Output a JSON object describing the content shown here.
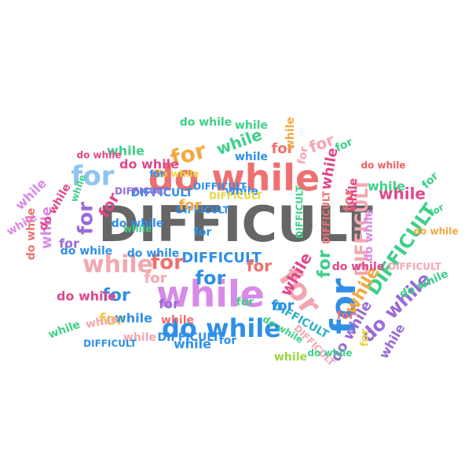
{
  "colors": {
    "gray": "#666666",
    "coral": "#ee7070",
    "blue": "#2f8fe8",
    "violet": "#d98ae8",
    "pink": "#f4a6b0",
    "magenta": "#e0488a",
    "green": "#3ed08a",
    "orange": "#f5a840",
    "yellow": "#e8d440",
    "teal": "#2fb0c8",
    "purple": "#9a6ad8",
    "lime": "#9ad840",
    "lightblue": "#8fc4f0",
    "red": "#f06060"
  },
  "words": [
    {
      "text": "DIFFICULT",
      "color": "gray"
    },
    {
      "text": "do while",
      "color": "coral"
    },
    {
      "text": "while",
      "color": "violet"
    },
    {
      "text": "do while",
      "color": "blue"
    },
    {
      "text": "for",
      "color": "pink"
    },
    {
      "text": "for",
      "color": "blue"
    },
    {
      "text": "while",
      "color": "pink"
    },
    {
      "text": "DIFFICULT",
      "color": "blue"
    },
    {
      "text": "while",
      "color": "magenta"
    },
    {
      "text": "for",
      "color": "lightblue"
    },
    {
      "text": "DIFFICULT",
      "color": "green"
    },
    {
      "text": "DIFFICULT",
      "color": "pink"
    },
    {
      "text": "do while",
      "color": "purple"
    },
    {
      "text": "for",
      "color": "orange"
    },
    {
      "text": "for",
      "color": "coral"
    },
    {
      "text": "while",
      "color": "green"
    },
    {
      "text": "while",
      "color": "blue"
    },
    {
      "text": "for",
      "color": "blue"
    },
    {
      "text": "do while",
      "color": "magenta"
    },
    {
      "text": "while",
      "color": "orange"
    },
    {
      "text": "for",
      "color": "purple"
    },
    {
      "text": "DIFFICULT",
      "color": "teal"
    },
    {
      "text": "for",
      "color": "blue"
    },
    {
      "text": "while",
      "color": "violet"
    },
    {
      "text": "while",
      "color": "blue"
    },
    {
      "text": "while",
      "color": "green"
    },
    {
      "text": "while",
      "color": "magenta"
    },
    {
      "text": "for",
      "color": "green"
    },
    {
      "text": "for",
      "color": "pink"
    },
    {
      "text": "do while",
      "color": "coral"
    },
    {
      "text": "for",
      "color": "yellow"
    },
    {
      "text": "do while",
      "color": "purple"
    },
    {
      "text": "for",
      "color": "blue"
    },
    {
      "text": "for",
      "color": "coral"
    },
    {
      "text": "do while",
      "color": "green"
    },
    {
      "text": "while",
      "color": "pink"
    },
    {
      "text": "for",
      "color": "green"
    },
    {
      "text": "for",
      "color": "magenta"
    },
    {
      "text": "DIFFICULT",
      "color": "yellow"
    },
    {
      "text": "while",
      "color": "coral"
    },
    {
      "text": "do while",
      "color": "blue"
    },
    {
      "text": "DIFFICULT",
      "color": "green"
    },
    {
      "text": "for",
      "color": "blue"
    },
    {
      "text": "for",
      "color": "coral"
    },
    {
      "text": "do while",
      "color": "green"
    },
    {
      "text": "for",
      "color": "yellow"
    },
    {
      "text": "do while",
      "color": "blue"
    },
    {
      "text": "DIFFICULT",
      "color": "blue"
    },
    {
      "text": "do while",
      "color": "magenta"
    },
    {
      "text": "while",
      "color": "violet"
    },
    {
      "text": "for",
      "color": "purple"
    },
    {
      "text": "while",
      "color": "green"
    },
    {
      "text": "for",
      "color": "coral"
    },
    {
      "text": "DIFFICULT",
      "color": "purple"
    },
    {
      "text": "DIFFICULT",
      "color": "blue"
    },
    {
      "text": "DIFFICULT",
      "color": "pink"
    },
    {
      "text": "do while",
      "color": "red"
    },
    {
      "text": "while",
      "color": "green"
    },
    {
      "text": "for",
      "color": "purple"
    },
    {
      "text": "for",
      "color": "green"
    },
    {
      "text": "do while",
      "color": "blue"
    },
    {
      "text": "do while",
      "color": "green"
    },
    {
      "text": "while",
      "color": "magenta"
    },
    {
      "text": "while",
      "color": "green"
    },
    {
      "text": "DIFFICULT",
      "color": "blue"
    },
    {
      "text": "for",
      "color": "pink"
    },
    {
      "text": "do while",
      "color": "magenta"
    },
    {
      "text": "while",
      "color": "lime"
    },
    {
      "text": "for",
      "color": "green"
    },
    {
      "text": "while",
      "color": "magenta"
    },
    {
      "text": "while",
      "color": "green"
    },
    {
      "text": "for",
      "color": "orange"
    },
    {
      "text": "do while",
      "color": "orange"
    },
    {
      "text": "while",
      "color": "blue"
    },
    {
      "text": "for",
      "color": "green"
    },
    {
      "text": "DIFFICULT",
      "color": "coral"
    },
    {
      "text": "do while",
      "color": "yellow"
    },
    {
      "text": "DIFFICULT",
      "color": "blue"
    },
    {
      "text": "for",
      "color": "pink"
    },
    {
      "text": "do while",
      "color": "magenta"
    },
    {
      "text": "while",
      "color": "blue"
    },
    {
      "text": "while",
      "color": "violet"
    },
    {
      "text": "for",
      "color": "blue"
    },
    {
      "text": "do while",
      "color": "green"
    },
    {
      "text": "while",
      "color": "purple"
    },
    {
      "text": "while",
      "color": "orange"
    },
    {
      "text": "for",
      "color": "coral"
    },
    {
      "text": "for",
      "color": "blue"
    },
    {
      "text": "do while",
      "color": "magenta"
    },
    {
      "text": "while",
      "color": "pink"
    },
    {
      "text": "DIFFICULT",
      "color": "blue"
    },
    {
      "text": "DIFFICULT",
      "color": "pink"
    },
    {
      "text": "do while",
      "color": "violet"
    },
    {
      "text": "while",
      "color": "green"
    }
  ]
}
